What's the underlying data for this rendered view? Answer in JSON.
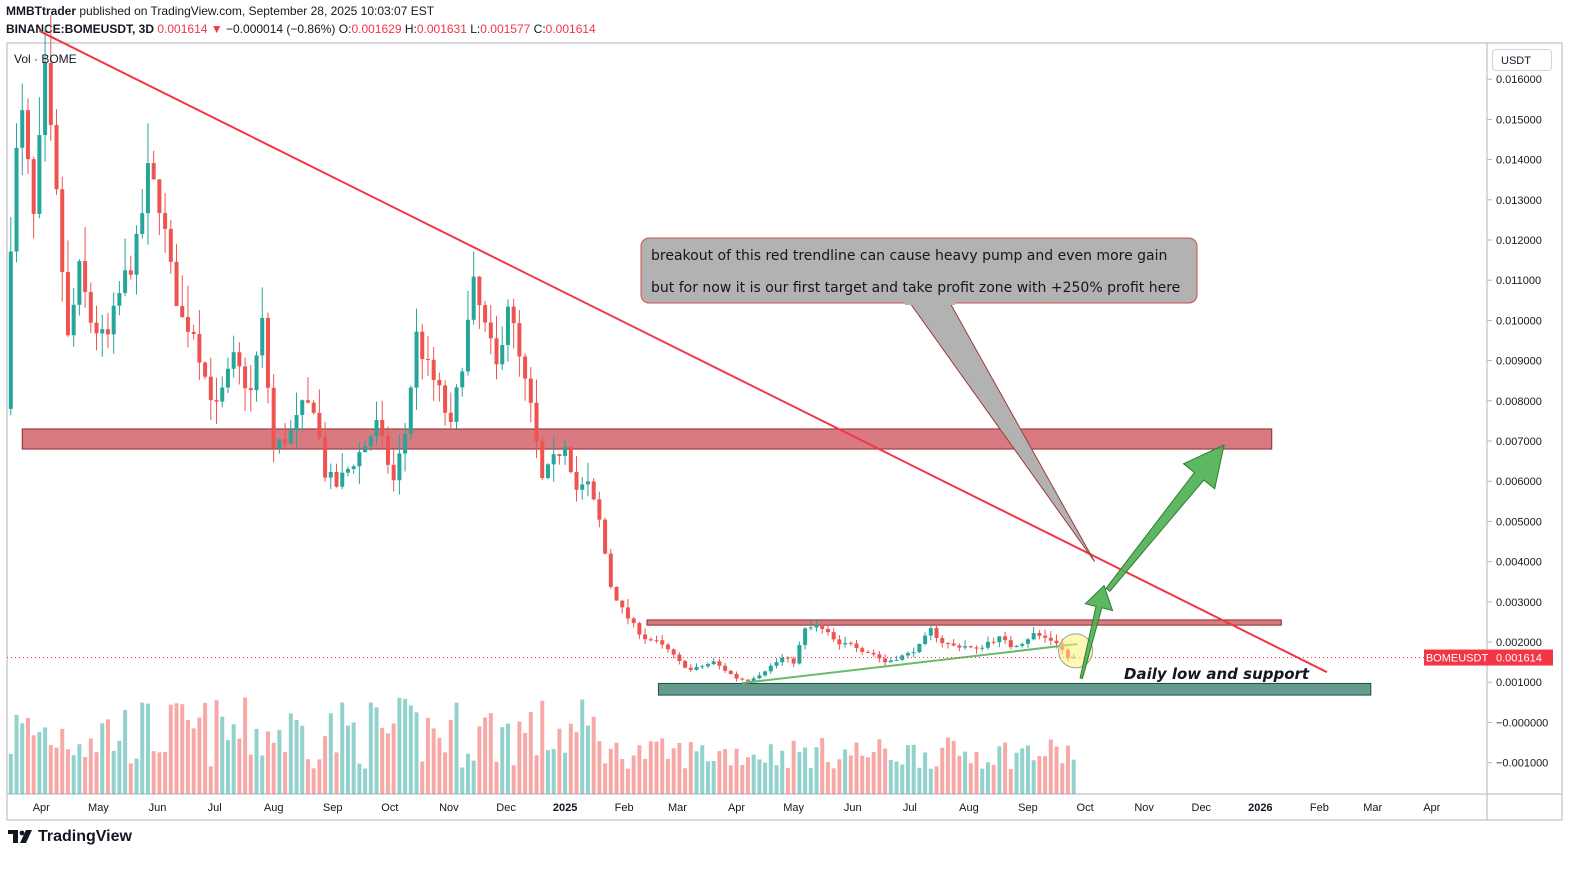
{
  "header": {
    "author": "MMBTtrader",
    "published": "published on TradingView.com, September 28, 2025 10:03:07 EST",
    "symbol": "BINANCE:BOMEUSDT, 3D",
    "last": "0.001614",
    "change_arrow": "▼",
    "change": "−0.000014 (−0.86%)",
    "o_label": "O:",
    "o": "0.001629",
    "h_label": "H:",
    "h": "0.001631",
    "l_label": "L:",
    "l": "0.001577",
    "c_label": "C:",
    "c": "0.001614"
  },
  "vol_label": "Vol · BOME",
  "currency_button": "USDT",
  "footer": {
    "brand": "TradingView",
    "logo_icon": "tradingview-logo-icon"
  },
  "colors": {
    "up": "#26a69a",
    "down": "#ef5350",
    "trendline": "#f23645",
    "resistance_zone": "#c9424c",
    "support_zone": "#4a8a7a",
    "arrow": "#4caf50",
    "callout_fill": "#b2b2b2",
    "price_tag": "#f23645"
  },
  "chart_data": {
    "type": "candlestick",
    "symbol": "BINANCE:BOMEUSDT",
    "interval": "3D",
    "y_axis": {
      "ticks": [
        "0.016000",
        "0.015000",
        "0.014000",
        "0.013000",
        "0.012000",
        "0.011000",
        "0.010000",
        "0.009000",
        "0.008000",
        "0.007000",
        "0.006000",
        "0.005000",
        "0.004000",
        "0.003000",
        "0.002000",
        "0.001000",
        "−0.000000",
        "−0.001000"
      ],
      "tick_values": [
        0.016,
        0.015,
        0.014,
        0.013,
        0.012,
        0.011,
        0.01,
        0.009,
        0.008,
        0.007,
        0.006,
        0.005,
        0.004,
        0.003,
        0.002,
        0.001,
        0.0,
        -0.001
      ],
      "range": [
        -0.00178,
        0.0169
      ]
    },
    "x_axis": {
      "labels": [
        "Apr",
        "May",
        "Jun",
        "Jul",
        "Aug",
        "Sep",
        "Oct",
        "Nov",
        "Dec",
        "2025",
        "Feb",
        "Mar",
        "Apr",
        "May",
        "Jun",
        "Jul",
        "Aug",
        "Sep",
        "Oct",
        "Nov",
        "Dec",
        "2026",
        "Feb",
        "Mar",
        "Apr"
      ],
      "bold_labels": [
        "2025",
        "2026"
      ],
      "label_dates": [
        "2024-04-01",
        "2024-05-01",
        "2024-06-01",
        "2024-07-01",
        "2024-08-01",
        "2024-09-01",
        "2024-10-01",
        "2024-11-01",
        "2024-12-01",
        "2025-01-01",
        "2025-02-01",
        "2025-03-01",
        "2025-04-01",
        "2025-05-01",
        "2025-06-01",
        "2025-07-01",
        "2025-08-01",
        "2025-09-01",
        "2025-10-01",
        "2025-11-01",
        "2025-12-01",
        "2026-01-01",
        "2026-02-01",
        "2026-03-01",
        "2026-04-01"
      ]
    },
    "price_anchors": [
      [
        "2024-03-16",
        0.0078
      ],
      [
        "2024-03-20",
        0.0135
      ],
      [
        "2024-03-25",
        0.015
      ],
      [
        "2024-03-31",
        0.0125
      ],
      [
        "2024-04-06",
        0.016
      ],
      [
        "2024-04-12",
        0.013
      ],
      [
        "2024-04-18",
        0.0095
      ],
      [
        "2024-04-24",
        0.0112
      ],
      [
        "2024-04-30",
        0.01
      ],
      [
        "2024-05-08",
        0.0094
      ],
      [
        "2024-05-16",
        0.0108
      ],
      [
        "2024-05-24",
        0.0118
      ],
      [
        "2024-05-30",
        0.0136
      ],
      [
        "2024-06-05",
        0.013
      ],
      [
        "2024-06-11",
        0.0112
      ],
      [
        "2024-06-17",
        0.01
      ],
      [
        "2024-06-23",
        0.0098
      ],
      [
        "2024-06-29",
        0.0086
      ],
      [
        "2024-07-05",
        0.0078
      ],
      [
        "2024-07-14",
        0.009
      ],
      [
        "2024-07-23",
        0.0082
      ],
      [
        "2024-07-29",
        0.0099
      ],
      [
        "2024-08-04",
        0.0068
      ],
      [
        "2024-08-13",
        0.0072
      ],
      [
        "2024-08-19",
        0.0078
      ],
      [
        "2024-08-25",
        0.0079
      ],
      [
        "2024-08-31",
        0.0062
      ],
      [
        "2024-09-06",
        0.0059
      ],
      [
        "2024-09-12",
        0.0063
      ],
      [
        "2024-09-21",
        0.0069
      ],
      [
        "2024-09-27",
        0.0074
      ],
      [
        "2024-10-06",
        0.006
      ],
      [
        "2024-10-12",
        0.0072
      ],
      [
        "2024-10-18",
        0.0096
      ],
      [
        "2024-10-24",
        0.0088
      ],
      [
        "2024-10-30",
        0.0082
      ],
      [
        "2024-11-05",
        0.0073
      ],
      [
        "2024-11-11",
        0.009
      ],
      [
        "2024-11-17",
        0.0108
      ],
      [
        "2024-11-23",
        0.0098
      ],
      [
        "2024-11-29",
        0.0088
      ],
      [
        "2024-12-05",
        0.0105
      ],
      [
        "2024-12-11",
        0.009
      ],
      [
        "2024-12-17",
        0.0078
      ],
      [
        "2024-12-23",
        0.006
      ],
      [
        "2024-12-29",
        0.0065
      ],
      [
        "2025-01-04",
        0.007
      ],
      [
        "2025-01-10",
        0.0058
      ],
      [
        "2025-01-16",
        0.0059
      ],
      [
        "2025-01-22",
        0.005
      ],
      [
        "2025-01-28",
        0.0034
      ],
      [
        "2025-02-03",
        0.0028
      ],
      [
        "2025-02-09",
        0.0024
      ],
      [
        "2025-02-15",
        0.0021
      ],
      [
        "2025-02-21",
        0.002
      ],
      [
        "2025-02-27",
        0.0018
      ],
      [
        "2025-03-05",
        0.0015
      ],
      [
        "2025-03-11",
        0.0013
      ],
      [
        "2025-03-17",
        0.0014
      ],
      [
        "2025-03-23",
        0.0015
      ],
      [
        "2025-03-29",
        0.0013
      ],
      [
        "2025-04-04",
        0.0011
      ],
      [
        "2025-04-10",
        0.00105
      ],
      [
        "2025-04-16",
        0.0012
      ],
      [
        "2025-04-22",
        0.0014
      ],
      [
        "2025-04-28",
        0.0016
      ],
      [
        "2025-05-04",
        0.0015
      ],
      [
        "2025-05-10",
        0.0023
      ],
      [
        "2025-05-16",
        0.0024
      ],
      [
        "2025-05-22",
        0.0022
      ],
      [
        "2025-05-28",
        0.0019
      ],
      [
        "2025-06-03",
        0.002
      ],
      [
        "2025-06-09",
        0.0018
      ],
      [
        "2025-06-15",
        0.0017
      ],
      [
        "2025-06-21",
        0.0015
      ],
      [
        "2025-06-27",
        0.0016
      ],
      [
        "2025-07-03",
        0.0017
      ],
      [
        "2025-07-09",
        0.0019
      ],
      [
        "2025-07-15",
        0.0023
      ],
      [
        "2025-07-21",
        0.002
      ],
      [
        "2025-07-27",
        0.0019
      ],
      [
        "2025-08-02",
        0.0019
      ],
      [
        "2025-08-08",
        0.0018
      ],
      [
        "2025-08-14",
        0.002
      ],
      [
        "2025-08-20",
        0.0021
      ],
      [
        "2025-08-26",
        0.0019
      ],
      [
        "2025-09-01",
        0.002
      ],
      [
        "2025-09-07",
        0.0022
      ],
      [
        "2025-09-13",
        0.0021
      ],
      [
        "2025-09-19",
        0.002
      ],
      [
        "2025-09-25",
        0.0016
      ]
    ],
    "current_price": 0.001614,
    "current_price_tag": "BOMEUSDT",
    "current_price_label": "0.001614",
    "trendline_red": {
      "from": [
        "2024-03-31",
        0.0172
      ],
      "to": [
        "2026-02-05",
        0.00125
      ]
    },
    "trendline_green": {
      "from": [
        "2025-04-04",
        0.00098
      ],
      "to": [
        "2025-09-27",
        0.00195
      ]
    },
    "resistance_zone": {
      "from": "2024-03-22",
      "to": "2026-01-07",
      "low": 0.0068,
      "high": 0.0073
    },
    "range_top_zone": {
      "from": "2025-02-13",
      "to": "2026-01-12",
      "low": 0.00242,
      "high": 0.00255
    },
    "support_zone": {
      "from": "2025-02-19",
      "to": "2026-02-28",
      "low": 0.00068,
      "high": 0.00097
    },
    "arrows": [
      {
        "from": [
          "2025-09-29",
          0.0011
        ],
        "to": [
          "2025-10-11",
          0.0034
        ]
      },
      {
        "from": [
          "2025-10-13",
          0.0033
        ],
        "to": [
          "2025-12-13",
          0.0069
        ]
      }
    ],
    "highlight_circle": {
      "at": [
        "2025-09-26",
        0.00178
      ]
    },
    "annotations": {
      "callout_line1": "breakout of this red trendline can cause heavy pump and even more gain",
      "callout_line2": "but for now it is our first target and take profit zone with +250% profit here",
      "callout_pointer": [
        "2025-10-06",
        0.004
      ],
      "support_label": "Daily low and support"
    }
  }
}
